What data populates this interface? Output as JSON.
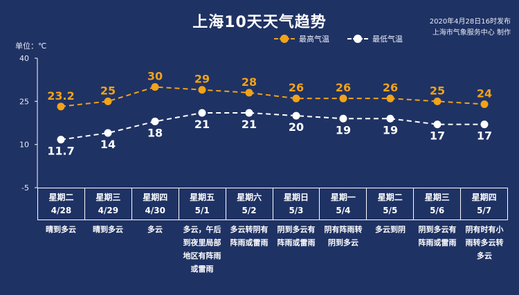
{
  "header": {
    "title": "上海10天天气趋势",
    "issued_time": "2020年4月28日16时发布",
    "issuer": "上海市气象服务中心 制作",
    "unit_label": "单位：℃"
  },
  "legend": {
    "high": "最高气温",
    "low": "最低气温"
  },
  "colors": {
    "background": "#1f3264",
    "high": "#f1a31a",
    "low": "#ffffff"
  },
  "chart_data": {
    "type": "line",
    "yticks": [
      40,
      25,
      10,
      -5
    ],
    "ylim": [
      -5,
      40
    ],
    "x": [
      "4/28",
      "4/29",
      "4/30",
      "5/1",
      "5/2",
      "5/3",
      "5/4",
      "5/5",
      "5/6",
      "5/7"
    ],
    "series": [
      {
        "name": "最高气温",
        "values": [
          23.2,
          25,
          30,
          29,
          28,
          26,
          26,
          26,
          25,
          24
        ],
        "labels": [
          "23.2",
          "25",
          "30",
          "29",
          "28",
          "26",
          "26",
          "26",
          "25",
          "24"
        ]
      },
      {
        "name": "最低气温",
        "values": [
          11.7,
          14,
          18,
          21,
          21,
          20,
          19,
          19,
          17,
          17
        ],
        "labels": [
          "11.7",
          "14",
          "18",
          "21",
          "21",
          "20",
          "19",
          "19",
          "17",
          "17"
        ]
      }
    ]
  },
  "days": [
    {
      "weekday": "星期二",
      "date": "4/28",
      "weather": "晴到多云"
    },
    {
      "weekday": "星期三",
      "date": "4/29",
      "weather": "晴到多云"
    },
    {
      "weekday": "星期四",
      "date": "4/30",
      "weather": "多云"
    },
    {
      "weekday": "星期五",
      "date": "5/1",
      "weather": "多云，午后到夜里局部地区有阵雨或雷雨"
    },
    {
      "weekday": "星期六",
      "date": "5/2",
      "weather": "多云转阴有阵雨或雷雨"
    },
    {
      "weekday": "星期日",
      "date": "5/3",
      "weather": "阴到多云有阵雨或雷雨"
    },
    {
      "weekday": "星期一",
      "date": "5/4",
      "weather": "阴有阵雨转阴到多云"
    },
    {
      "weekday": "星期二",
      "date": "5/5",
      "weather": "多云到阴"
    },
    {
      "weekday": "星期三",
      "date": "5/6",
      "weather": "阴到多云有阵雨或雷雨"
    },
    {
      "weekday": "星期四",
      "date": "5/7",
      "weather": "阴有时有小雨转多云转多云"
    }
  ]
}
